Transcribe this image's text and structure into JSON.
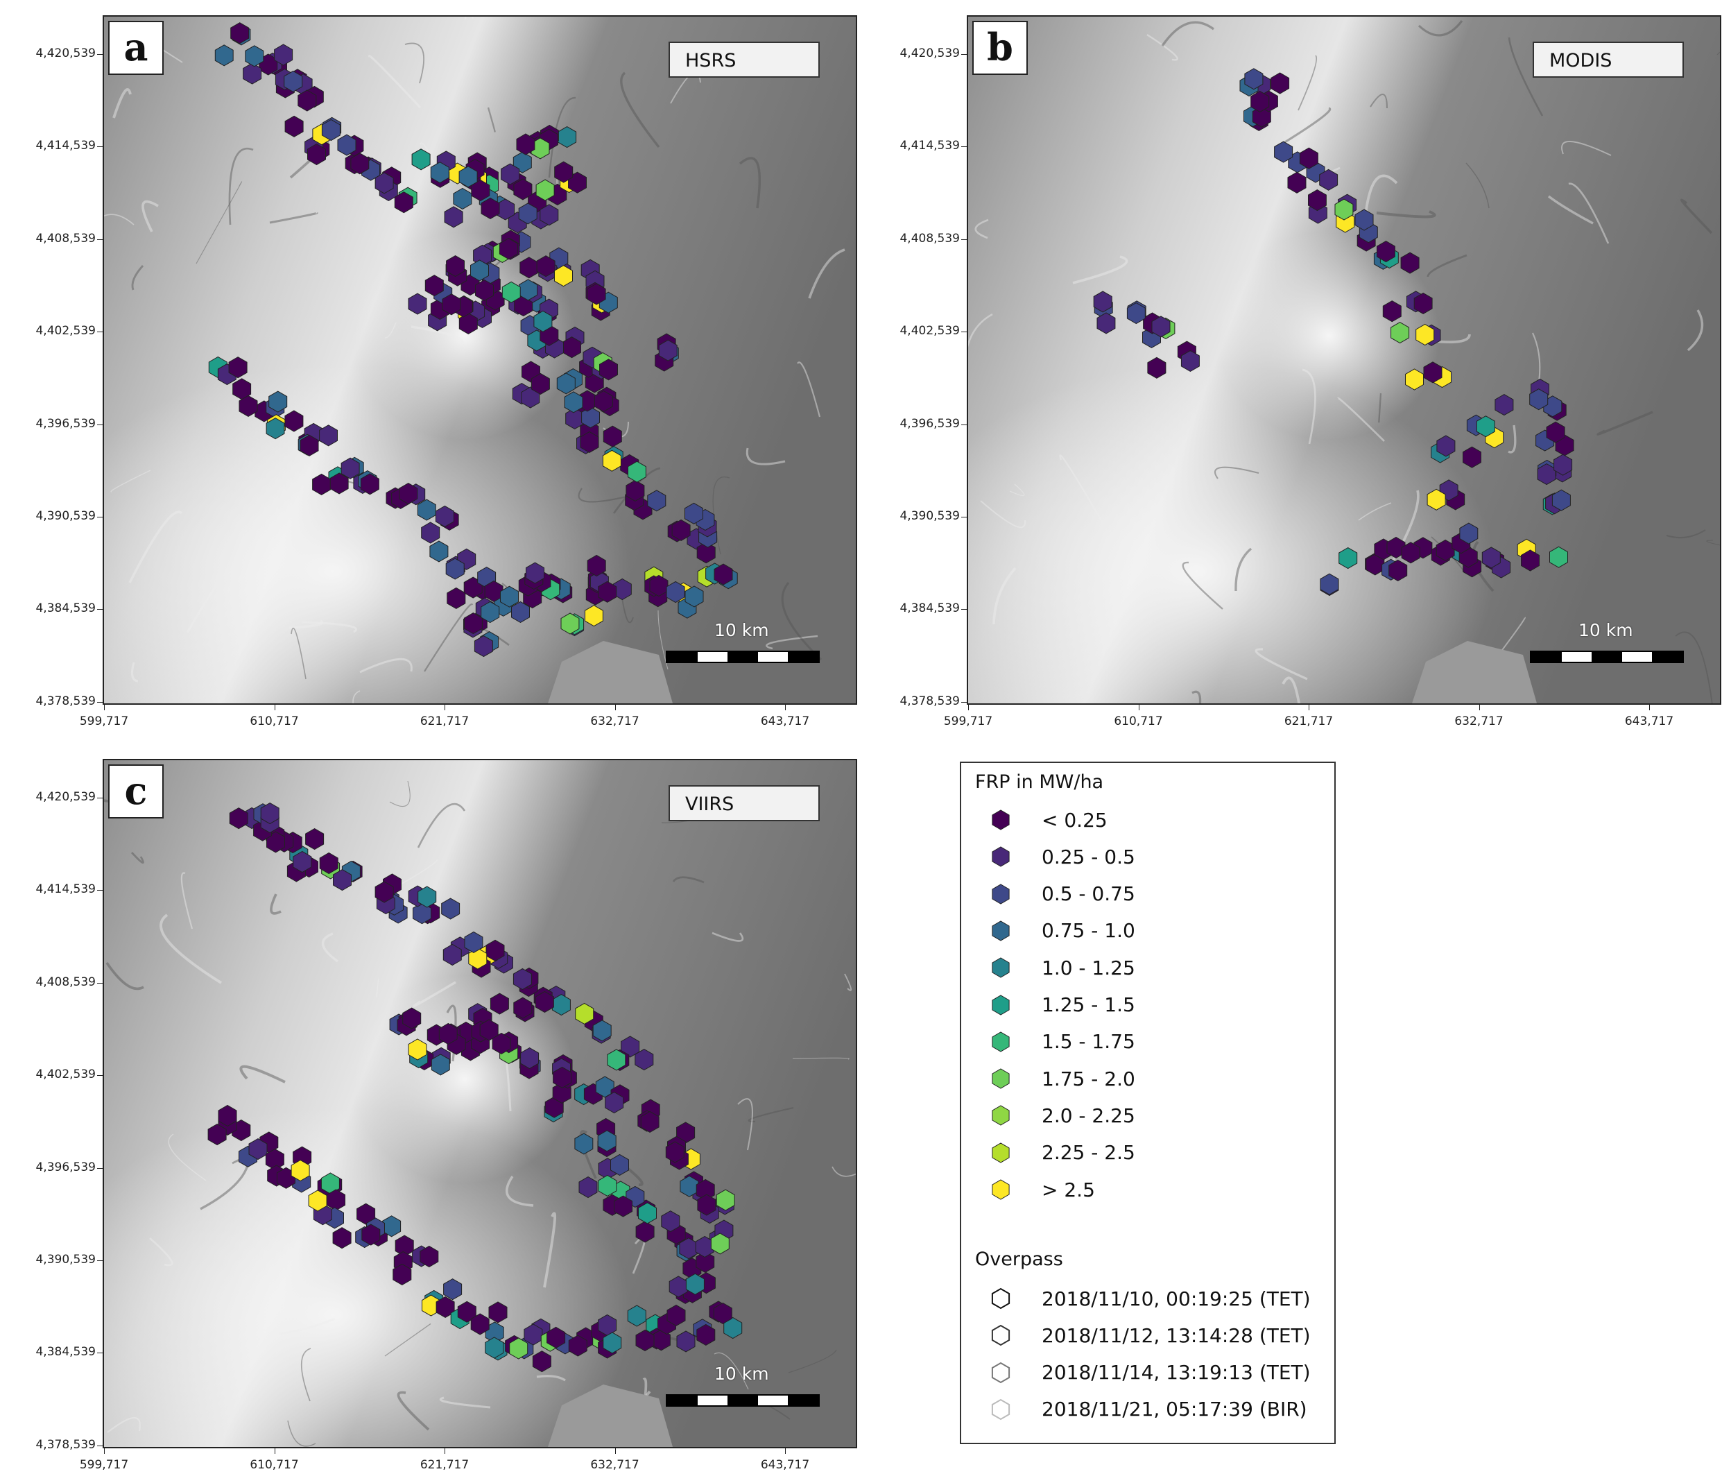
{
  "panels": [
    {
      "letter": "a",
      "sensor": "HSRS",
      "scale_label": "10 km"
    },
    {
      "letter": "b",
      "sensor": "MODIS",
      "scale_label": "10 km"
    },
    {
      "letter": "c",
      "sensor": "VIIRS",
      "scale_label": "10 km"
    }
  ],
  "axes": {
    "x_ticks": [
      "599,717",
      "610,717",
      "621,717",
      "632,717",
      "643,717"
    ],
    "y_ticks": [
      "4,420,539",
      "4,414,539",
      "4,408,539",
      "4,402,539",
      "4,396,539",
      "4,390,539",
      "4,384,539",
      "4,378,539"
    ]
  },
  "legend": {
    "frp_title": "FRP in MW/ha",
    "frp_classes": [
      {
        "label": "< 0.25",
        "color": "#440154"
      },
      {
        "label": "0.25 - 0.5",
        "color": "#482878"
      },
      {
        "label": "0.5 - 0.75",
        "color": "#3e4989"
      },
      {
        "label": "0.75 - 1.0",
        "color": "#31688e"
      },
      {
        "label": "1.0 - 1.25",
        "color": "#26828e"
      },
      {
        "label": "1.25 - 1.5",
        "color": "#1f9e89"
      },
      {
        "label": "1.5 - 1.75",
        "color": "#35b779"
      },
      {
        "label": "1.75 - 2.0",
        "color": "#6ece58"
      },
      {
        "label": "2.0 - 2.25",
        "color": "#8fd744"
      },
      {
        "label": "2.25 - 2.5",
        "color": "#b5de2b"
      },
      {
        "label": "> 2.5",
        "color": "#fde725"
      }
    ],
    "overpass_title": "Overpass",
    "overpasses": [
      {
        "label": "2018/11/10, 00:19:25 (TET)",
        "stroke": "#111111"
      },
      {
        "label": "2018/11/12, 13:14:28 (TET)",
        "stroke": "#333333"
      },
      {
        "label": "2018/11/14, 13:19:13 (TET)",
        "stroke": "#777777"
      },
      {
        "label": "2018/11/21, 05:17:39 (BIR)",
        "stroke": "#bbbbbb"
      }
    ]
  }
}
